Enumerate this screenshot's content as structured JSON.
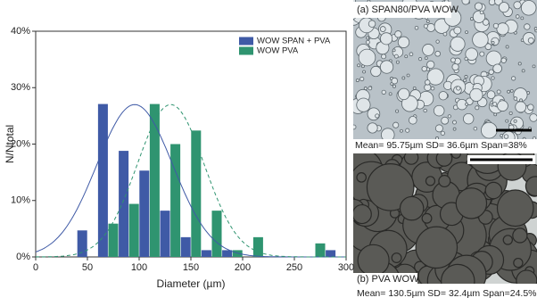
{
  "chart_data": {
    "type": "bar",
    "xlabel": "Diameter (µm)",
    "ylabel": "N/Ntotal",
    "xlim": [
      0,
      300
    ],
    "xticks": [
      0,
      50,
      100,
      150,
      200,
      250,
      300
    ],
    "ylim": [
      0,
      40
    ],
    "yticks": [
      {
        "value": 0,
        "label": "0%"
      },
      {
        "value": 10,
        "label": "10%"
      },
      {
        "value": 20,
        "label": "20%"
      },
      {
        "value": 30,
        "label": "30%"
      },
      {
        "value": 40,
        "label": "40%"
      }
    ],
    "legend_position": "top-right",
    "series": [
      {
        "name": "WOW SPAN + PVA",
        "color": "#3f5aa6",
        "x": [
          45,
          65,
          85,
          105,
          125,
          145,
          165,
          185,
          285
        ],
        "values": [
          4.7,
          27.1,
          18.8,
          15.3,
          8.2,
          3.5,
          1.2,
          1.2,
          1.2
        ],
        "fit": {
          "mean": 95.75,
          "sd": 36.6,
          "peak": 27,
          "dash": false
        }
      },
      {
        "name": "WOW PVA",
        "color": "#2f9470",
        "x": [
          75,
          95,
          115,
          135,
          155,
          175,
          195,
          215,
          275
        ],
        "values": [
          5.9,
          9.4,
          27.1,
          20,
          22.4,
          8.2,
          1.2,
          3.5,
          2.4
        ],
        "fit": {
          "mean": 130.5,
          "sd": 32.4,
          "peak": 27,
          "dash": true
        }
      }
    ]
  },
  "images": [
    {
      "label": "(a) SPAN80/PVA WOW",
      "caption": "Mean= 95.75µm SD= 36.6µm Span=38%"
    },
    {
      "label": "(b) PVA WOW",
      "caption": "Mean= 130.5µm SD= 32.4µm Span=24.5%"
    }
  ]
}
